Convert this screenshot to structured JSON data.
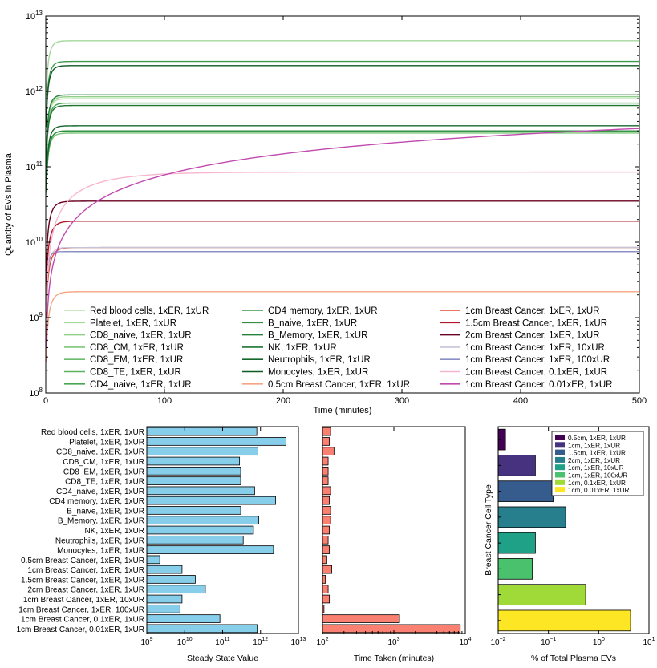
{
  "chart_data": [
    {
      "type": "line",
      "title": "",
      "xlabel": "Time (minutes)",
      "ylabel": "Quantity of EVs in Plasma",
      "xlim": [
        0,
        500
      ],
      "ylim_log10": [
        8,
        13
      ],
      "x_ticks": [
        "0",
        "100",
        "200",
        "300",
        "400",
        "500"
      ],
      "y_ticks": [
        {
          "base": "10",
          "exp": "8"
        },
        {
          "base": "10",
          "exp": "9"
        },
        {
          "base": "10",
          "exp": "10"
        },
        {
          "base": "10",
          "exp": "11"
        },
        {
          "base": "10",
          "exp": "12"
        },
        {
          "base": "10",
          "exp": "13"
        }
      ],
      "legend": "lower center, 3 columns",
      "series": [
        {
          "name": "Red blood cells, 1xER, 1xUR",
          "steady": 800000000000,
          "tau": 3,
          "color": "#b8e0b0"
        },
        {
          "name": "Platelet, 1xER, 1xUR",
          "steady": 4700000000000,
          "tau": 3,
          "color": "#a4d89c"
        },
        {
          "name": "CD8_naive, 1xER, 1xUR",
          "steady": 850000000000,
          "tau": 3,
          "color": "#8fcf88"
        },
        {
          "name": "CD8_CM, 1xER, 1xUR",
          "steady": 280000000000,
          "tau": 3,
          "color": "#7cc67a"
        },
        {
          "name": "CD8_EM, 1xER, 1xUR",
          "steady": 300000000000,
          "tau": 3,
          "color": "#6abc6c"
        },
        {
          "name": "CD8_TE, 1xER, 1xUR",
          "steady": 300000000000,
          "tau": 3,
          "color": "#5ab160"
        },
        {
          "name": "CD4_naive, 1xER, 1xUR",
          "steady": 700000000000,
          "tau": 3,
          "color": "#4aa655"
        },
        {
          "name": "CD4 memory, 1xER, 1xUR",
          "steady": 2500000000000,
          "tau": 3,
          "color": "#3d9a4b"
        },
        {
          "name": "B_naive, 1xER, 1xUR",
          "steady": 300000000000,
          "tau": 3,
          "color": "#318e43"
        },
        {
          "name": "B_Memory, 1xER, 1xUR",
          "steady": 900000000000,
          "tau": 3,
          "color": "#26823b"
        },
        {
          "name": "NK, 1xER, 1xUR",
          "steady": 650000000000,
          "tau": 3,
          "color": "#1d7533"
        },
        {
          "name": "Neutrophils, 1xER, 1xUR",
          "steady": 350000000000,
          "tau": 3,
          "color": "#15682c"
        },
        {
          "name": "Monocytes, 1xER, 1xUR",
          "steady": 2200000000000,
          "tau": 3,
          "color": "#0e5a25"
        },
        {
          "name": "0.5cm Breast Cancer, 1xER, 1xUR",
          "steady": 2200000000,
          "tau": 4,
          "color": "#f4a582"
        },
        {
          "name": "1cm Breast Cancer, 1xER, 1xUR",
          "steady": 8500000000,
          "tau": 4,
          "color": "#e34a33"
        },
        {
          "name": "1.5cm Breast Cancer, 1xER, 1xUR",
          "steady": 19000000000,
          "tau": 4,
          "color": "#b2182b"
        },
        {
          "name": "2cm Breast Cancer, 1xER, 1xUR",
          "steady": 35000000000,
          "tau": 4,
          "color": "#67001f"
        },
        {
          "name": "1cm Breast Cancer, 1xER, 10xUR",
          "steady": 8500000000,
          "tau": 3,
          "color": "#c4c4d8"
        },
        {
          "name": "1cm Breast Cancer, 1xER, 100xUR",
          "steady": 7500000000,
          "tau": 2,
          "color": "#8c8fc6"
        },
        {
          "name": "1cm Breast Cancer, 0.1xER, 1xUR",
          "steady": 85000000000,
          "tau": 35,
          "color": "#f7b6cf"
        },
        {
          "name": "1cm Breast Cancer, 0.01xER, 1xUR",
          "steady": 820000000000,
          "tau": 1000,
          "color": "#c14ab0"
        }
      ]
    },
    {
      "type": "bar",
      "orientation": "horizontal",
      "xlabel": "Steady State Value",
      "ylabel": "",
      "xscale": "log",
      "xlim_log10": [
        9,
        13
      ],
      "x_ticks": [
        {
          "base": "10",
          "exp": "9"
        },
        {
          "base": "10",
          "exp": "10"
        },
        {
          "base": "10",
          "exp": "11"
        },
        {
          "base": "10",
          "exp": "12"
        },
        {
          "base": "10",
          "exp": "13"
        }
      ],
      "categories": [
        "Red blood cells, 1xER, 1xUR",
        "Platelet, 1xER, 1xUR",
        "CD8_naive, 1xER, 1xUR",
        "CD8_CM, 1xER, 1xUR",
        "CD8_EM, 1xER, 1xUR",
        "CD8_TE, 1xER, 1xUR",
        "CD4_naive, 1xER, 1xUR",
        "CD4 memory, 1xER, 1xUR",
        "B_naive, 1xER, 1xUR",
        "B_Memory, 1xER, 1xUR",
        "NK, 1xER, 1xUR",
        "Neutrophils, 1xER, 1xUR",
        "Monocytes, 1xER, 1xUR",
        "0.5cm Breast Cancer, 1xER, 1xUR",
        "1cm Breast Cancer, 1xER, 1xUR",
        "1.5cm Breast Cancer, 1xER, 1xUR",
        "2cm Breast Cancer, 1xER, 1xUR",
        "1cm Breast Cancer, 1xER, 10xUR",
        "1cm Breast Cancer, 1xER, 100xUR",
        "1cm Breast Cancer, 0.1xER, 1xUR",
        "1cm Breast Cancer, 0.01xER, 1xUR"
      ],
      "values": [
        800000000000,
        4700000000000,
        850000000000,
        280000000000,
        300000000000,
        300000000000,
        700000000000,
        2500000000000,
        300000000000,
        900000000000,
        650000000000,
        350000000000,
        2200000000000,
        2200000000,
        8500000000,
        19000000000,
        35000000000,
        8500000000,
        7500000000,
        85000000000,
        820000000000
      ],
      "color": "#87ceeb"
    },
    {
      "type": "bar",
      "orientation": "horizontal",
      "xlabel": "Time Taken (minutes)",
      "xscale": "log",
      "xlim_log10": [
        2,
        4
      ],
      "x_ticks": [
        {
          "base": "10",
          "exp": "2"
        },
        {
          "base": "10",
          "exp": "3"
        },
        {
          "base": "10",
          "exp": "4"
        }
      ],
      "values": [
        130,
        125,
        145,
        120,
        120,
        120,
        130,
        125,
        130,
        130,
        125,
        120,
        125,
        115,
        135,
        110,
        120,
        125,
        105,
        1200,
        8500
      ],
      "color": "#fa8072"
    },
    {
      "type": "bar",
      "orientation": "horizontal",
      "xlabel": "% of Total Plasma EVs",
      "ylabel": "Breast Cancer Cell Type",
      "xscale": "log",
      "xlim_log10": [
        -2,
        1
      ],
      "x_ticks": [
        {
          "base": "10",
          "exp": "−2"
        },
        {
          "base": "10",
          "exp": "−1"
        },
        {
          "base": "10",
          "exp": "0"
        },
        {
          "base": "10",
          "exp": "1"
        }
      ],
      "legend": "top-right",
      "categories": [
        "0.5cm, 1xER, 1xUR",
        "1cm, 1xER, 1xUR",
        "1.5cm, 1xER, 1xUR",
        "2cm, 1xER, 1xUR",
        "1cm, 1xER, 10xUR",
        "1cm, 1xER, 100xUR",
        "1cm, 0.1xER, 1xUR",
        "1cm, 0.01xER, 1xUR"
      ],
      "values": [
        0.014,
        0.055,
        0.125,
        0.22,
        0.055,
        0.048,
        0.55,
        4.3
      ],
      "colors": [
        "#440154",
        "#46327e",
        "#365c8d",
        "#277f8e",
        "#1fa187",
        "#4ac16d",
        "#a0da39",
        "#fde725"
      ]
    }
  ]
}
